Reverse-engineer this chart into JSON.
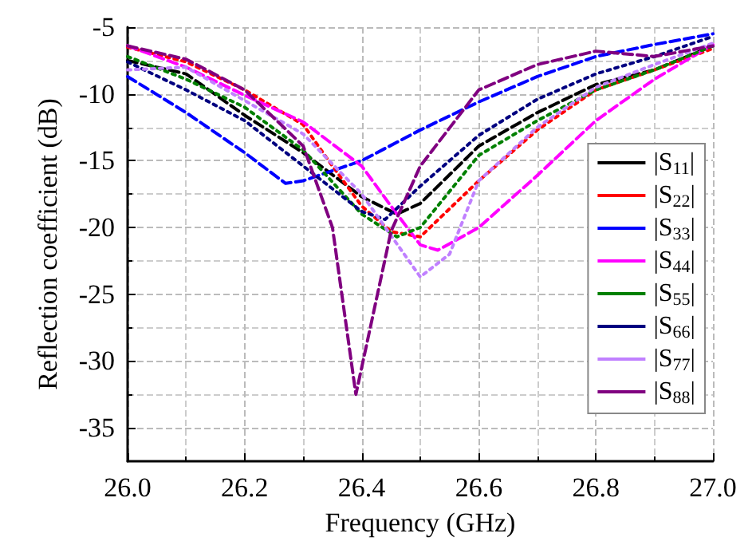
{
  "chart_data": {
    "type": "line",
    "xlabel": "Frequency (GHz)",
    "ylabel": "Reflection coefficient (dB)",
    "xlim": [
      26.0,
      27.0
    ],
    "xticks": [
      {
        "value": 26.0,
        "label": "26.0"
      },
      {
        "value": 26.2,
        "label": "26.2"
      },
      {
        "value": 26.4,
        "label": "26.4"
      },
      {
        "value": 26.6,
        "label": "26.6"
      },
      {
        "value": 26.8,
        "label": "26.8"
      },
      {
        "value": 27.0,
        "label": "27.0"
      }
    ],
    "ylim": [
      -37.5,
      -5
    ],
    "yticks": [
      -35,
      -30,
      -25,
      -20,
      -15,
      -10,
      -5
    ],
    "grid": true,
    "legend": "right",
    "marker": "none",
    "series": [
      {
        "name": "|S$_{11}$|",
        "color": "#000000",
        "line_style": "dashed",
        "x": [
          26.0,
          26.1,
          26.2,
          26.3,
          26.4,
          26.46,
          26.5,
          26.6,
          26.7,
          26.8,
          26.9,
          27.0
        ],
        "values": [
          -7.5,
          -8.5,
          -11.6,
          -14.4,
          -17.7,
          -19.0,
          -18.2,
          -13.9,
          -11.4,
          -9.3,
          -8.2,
          -6.4
        ]
      },
      {
        "name": "|S$_{22}$|",
        "color": "#ff0000",
        "line_style": "dotted",
        "x": [
          26.0,
          26.1,
          26.2,
          26.3,
          26.35,
          26.4,
          26.45,
          26.5,
          26.6,
          26.7,
          26.8,
          26.9,
          27.0
        ],
        "values": [
          -6.5,
          -7.6,
          -9.7,
          -12.3,
          -15.4,
          -18.4,
          -20.3,
          -20.7,
          -16.5,
          -12.7,
          -9.7,
          -8.2,
          -6.6
        ]
      },
      {
        "name": "|S$_{33}$|",
        "color": "#0000ff",
        "line_style": "dashed",
        "x": [
          26.0,
          26.1,
          26.2,
          26.27,
          26.3,
          26.4,
          26.5,
          26.6,
          26.7,
          26.8,
          26.9,
          27.0
        ],
        "values": [
          -8.7,
          -11.4,
          -14.4,
          -16.7,
          -16.5,
          -15.0,
          -12.7,
          -10.6,
          -8.7,
          -7.2,
          -6.3,
          -5.5
        ]
      },
      {
        "name": "|S$_{44}$|",
        "color": "#ff00ff",
        "line_style": "dashed",
        "x": [
          26.0,
          26.1,
          26.2,
          26.3,
          26.4,
          26.45,
          26.5,
          26.53,
          26.6,
          26.7,
          26.8,
          26.9,
          27.0
        ],
        "values": [
          -6.4,
          -8.0,
          -10.1,
          -12.1,
          -15.4,
          -18.4,
          -21.3,
          -21.7,
          -20.0,
          -16.1,
          -12.0,
          -8.9,
          -6.3
        ]
      },
      {
        "name": "|S$_{55}$|",
        "color": "#008000",
        "line_style": "dotted",
        "x": [
          26.0,
          26.1,
          26.2,
          26.3,
          26.4,
          26.46,
          26.5,
          26.6,
          26.7,
          26.8,
          26.9,
          27.0
        ],
        "values": [
          -7.2,
          -8.9,
          -11.0,
          -14.2,
          -19.0,
          -20.7,
          -20.0,
          -14.6,
          -12.0,
          -9.7,
          -8.2,
          -6.4
        ]
      },
      {
        "name": "|S$_{66}$|",
        "color": "#000080",
        "line_style": "dotted",
        "x": [
          26.0,
          26.1,
          26.2,
          26.3,
          26.4,
          26.44,
          26.5,
          26.6,
          26.7,
          26.8,
          26.9,
          27.0
        ],
        "values": [
          -7.6,
          -9.7,
          -12.0,
          -15.4,
          -18.8,
          -19.4,
          -16.9,
          -13.1,
          -10.4,
          -8.5,
          -7.2,
          -5.7
        ]
      },
      {
        "name": "|S$_{77}$|",
        "color": "#c080ff",
        "line_style": "dotted",
        "x": [
          26.0,
          26.1,
          26.2,
          26.3,
          26.4,
          26.5,
          26.55,
          26.6,
          26.7,
          26.8,
          26.9,
          27.0
        ],
        "values": [
          -8.2,
          -8.0,
          -10.5,
          -13.0,
          -17.5,
          -23.7,
          -22.0,
          -16.5,
          -12.5,
          -9.5,
          -7.8,
          -6.2
        ]
      },
      {
        "name": "|S$_{88}$|",
        "color": "#800080",
        "line_style": "dashed",
        "x": [
          26.0,
          26.1,
          26.2,
          26.3,
          26.35,
          26.39,
          26.45,
          26.5,
          26.6,
          26.7,
          26.8,
          26.9,
          27.0
        ],
        "values": [
          -6.4,
          -7.4,
          -9.7,
          -13.9,
          -20.0,
          -32.5,
          -20.3,
          -15.4,
          -9.7,
          -7.8,
          -6.8,
          -7.2,
          -6.4
        ]
      }
    ]
  }
}
